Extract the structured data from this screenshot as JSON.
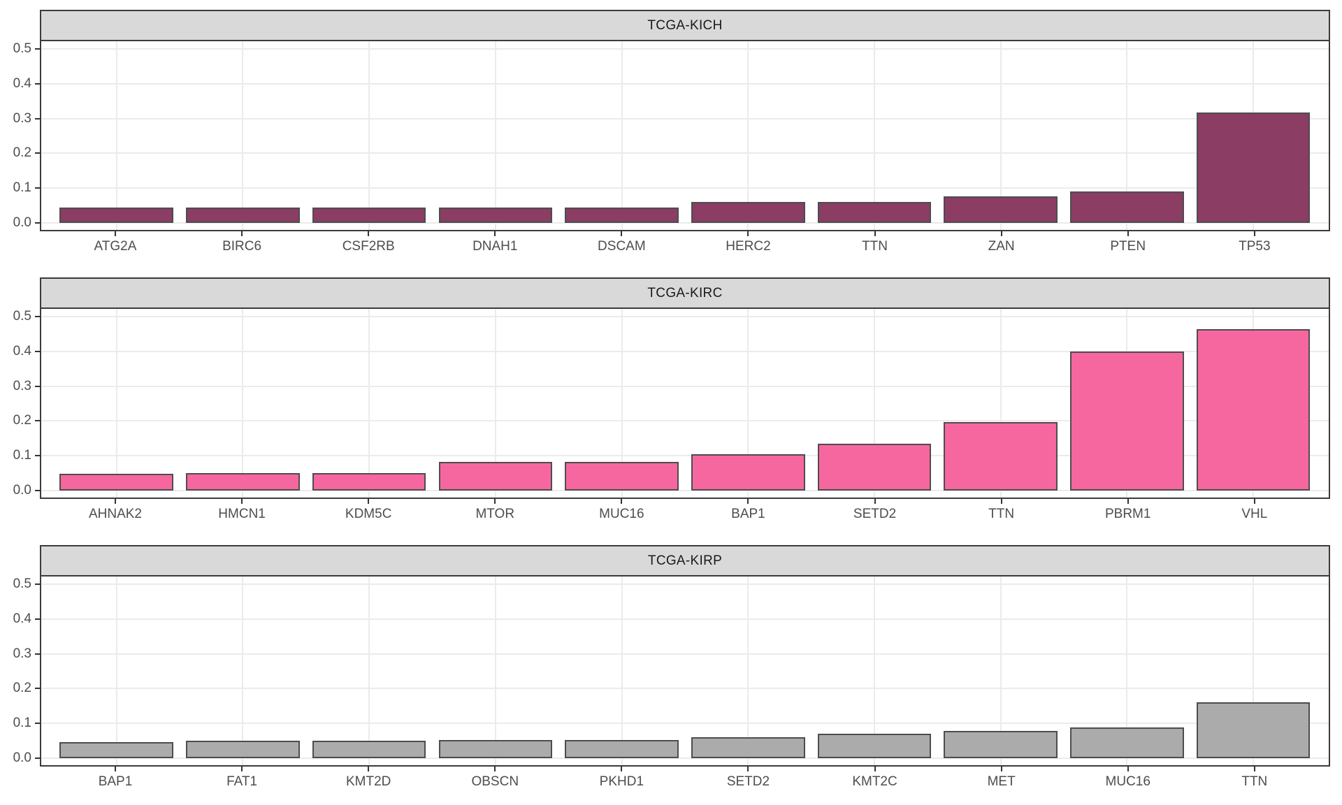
{
  "chart_data": {
    "type": "bar",
    "title": "",
    "xlabel": "",
    "ylabel": "",
    "ylim": [
      0,
      0.52
    ],
    "y_ticks": [
      "0.0",
      "0.1",
      "0.2",
      "0.3",
      "0.4",
      "0.5"
    ],
    "grid": "horizontal major gridlines at 0.1 steps; vertical gridline at each category center",
    "legend_position": "none",
    "facet_layout": "3 rows, 1 column",
    "facets": [
      {
        "title": "TCGA-KICH",
        "fill": "#8B3D64",
        "categories": [
          "ATG2A",
          "BIRC6",
          "CSF2RB",
          "DNAH1",
          "DSCAM",
          "HERC2",
          "TTN",
          "ZAN",
          "PTEN",
          "TP53"
        ],
        "values": [
          0.045,
          0.045,
          0.045,
          0.045,
          0.045,
          0.061,
          0.061,
          0.076,
          0.091,
          0.318
        ]
      },
      {
        "title": "TCGA-KIRC",
        "fill": "#F7679F",
        "categories": [
          "AHNAK2",
          "HMCN1",
          "KDM5C",
          "MTOR",
          "MUC16",
          "BAP1",
          "SETD2",
          "TTN",
          "PBRM1",
          "VHL"
        ],
        "values": [
          0.048,
          0.051,
          0.051,
          0.083,
          0.083,
          0.104,
          0.134,
          0.196,
          0.399,
          0.464
        ]
      },
      {
        "title": "TCGA-KIRP",
        "fill": "#ABABAB",
        "categories": [
          "BAP1",
          "FAT1",
          "KMT2D",
          "OBSCN",
          "PKHD1",
          "SETD2",
          "KMT2C",
          "MET",
          "MUC16",
          "TTN"
        ],
        "values": [
          0.046,
          0.05,
          0.05,
          0.053,
          0.053,
          0.06,
          0.071,
          0.078,
          0.089,
          0.16
        ]
      }
    ],
    "colors": {
      "bar_outline": "#4D4D4D",
      "strip_background": "#D9D9D9",
      "panel_border": "#3b3b3b",
      "gridline": "#EBEBEB",
      "axis_text": "#4D4D4D",
      "strip_text": "#1a1a1a",
      "background": "#ffffff"
    }
  }
}
